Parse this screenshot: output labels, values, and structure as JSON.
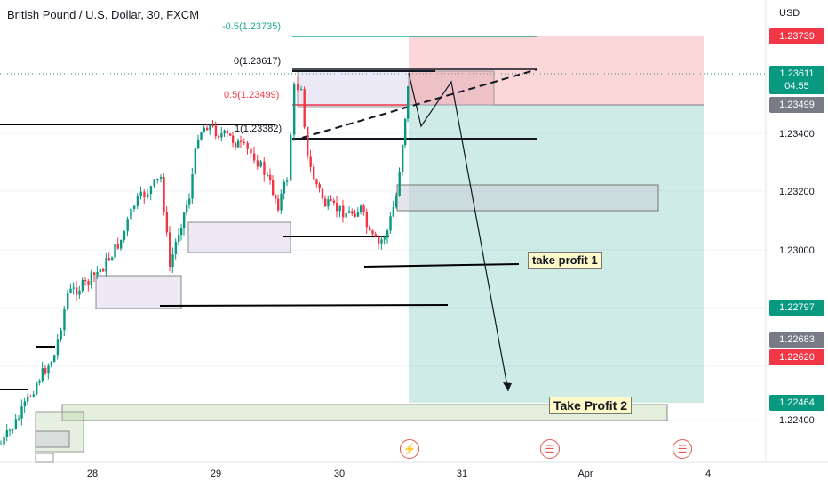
{
  "header": {
    "title": "British Pound / U.S. Dollar, 30, FXCM"
  },
  "currency": "USD",
  "axis_ticks": [
    "1.23400",
    "1.23200",
    "1.23000",
    "1.22400"
  ],
  "price_tags": [
    {
      "text": "1.23739",
      "color": "#f23645"
    },
    {
      "text": "1.23611",
      "sub": "04:55",
      "color": "#089981"
    },
    {
      "text": "1.23499",
      "color": "#787b86"
    },
    {
      "text": "1.22797",
      "color": "#089981"
    },
    {
      "text": "1.22683",
      "color": "#787b86"
    },
    {
      "text": "1.22620",
      "color": "#f23645"
    },
    {
      "text": "1.22464",
      "color": "#089981"
    }
  ],
  "dates": [
    "28",
    "29",
    "30",
    "31",
    "Apr",
    "4"
  ],
  "fib_labels": [
    {
      "text": "-0.5(1.23735)",
      "color": "#22ab94"
    },
    {
      "text": "0(1.23617)",
      "color": "#131722"
    },
    {
      "text": "0.5(1.23499)",
      "color": "#f23645"
    },
    {
      "text": "1(1.23382)",
      "color": "#131722"
    }
  ],
  "annotations": {
    "tp1": "take profit 1",
    "tp2": "Take Profit 2"
  },
  "events": [
    {
      "icon": "lightning-icon",
      "glyph": "⚡"
    },
    {
      "icon": "us-flag-icon",
      "glyph": "☰"
    },
    {
      "icon": "us-flag-icon",
      "glyph": "☰"
    }
  ],
  "colors": {
    "up": "#089981",
    "down": "#f23645"
  }
}
